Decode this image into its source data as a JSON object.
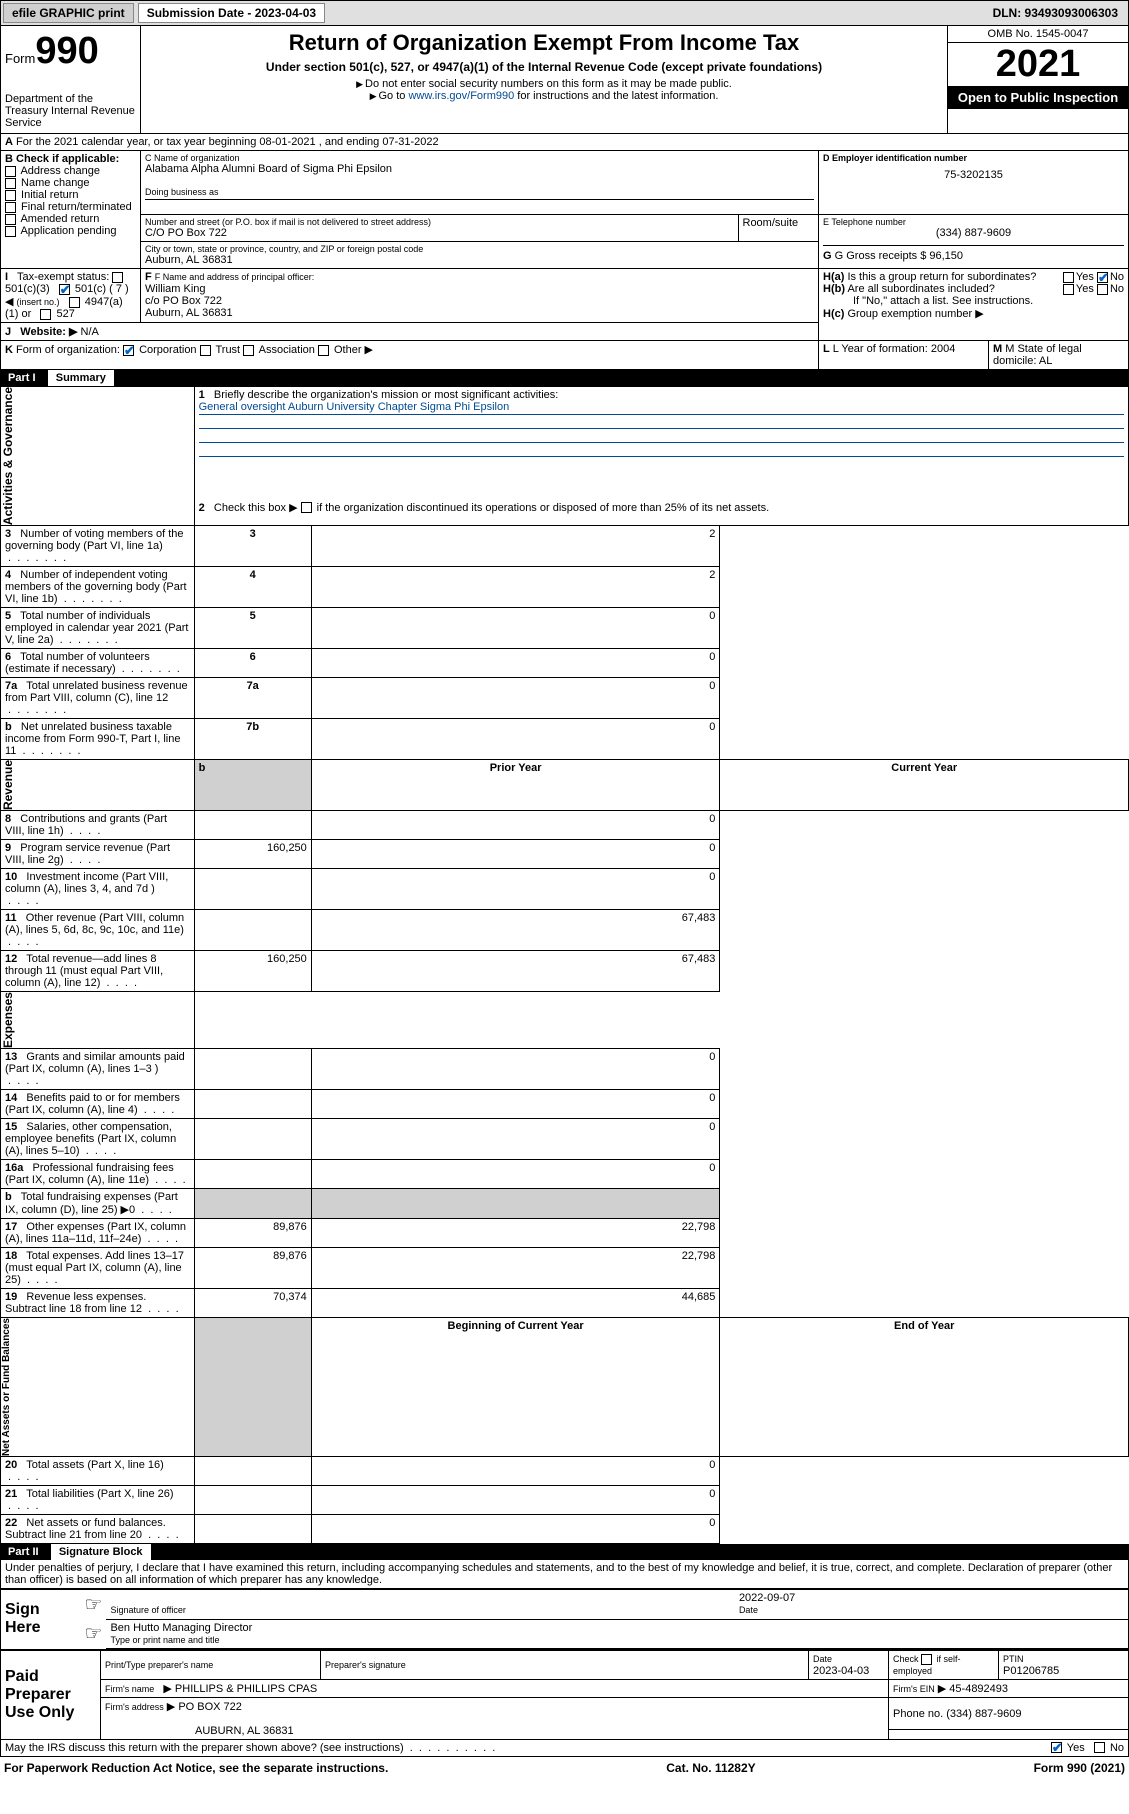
{
  "topBar": {
    "efile": "efile GRAPHIC print",
    "subDate": "Submission Date - 2023-04-03",
    "dln": "DLN: 93493093006303"
  },
  "header": {
    "formLabel": "Form",
    "formNum": "990",
    "dept": "Department of the Treasury Internal Revenue Service",
    "title": "Return of Organization Exempt From Income Tax",
    "subtitle": "Under section 501(c), 527, or 4947(a)(1) of the Internal Revenue Code (except private foundations)",
    "note1": "Do not enter social security numbers on this form as it may be made public.",
    "note2": "Go to ",
    "note2link": "www.irs.gov/Form990",
    "note2after": " for instructions and the latest information.",
    "omb": "OMB No. 1545-0047",
    "year": "2021",
    "inspection": "Open to Public Inspection"
  },
  "sectionA": {
    "taxYear": "For the 2021 calendar year, or tax year beginning 08-01-2021  , and ending 07-31-2022",
    "checkLabel": "B Check if applicable:",
    "checks": [
      "Address change",
      "Name change",
      "Initial return",
      "Final return/terminated",
      "Amended return",
      "Application pending"
    ],
    "nameLabel": "C Name of organization",
    "orgName": "Alabama Alpha Alumni Board of Sigma Phi Epsilon",
    "dbaLabel": "Doing business as",
    "addrLabel": "Number and street (or P.O. box if mail is not delivered to street address)",
    "roomLabel": "Room/suite",
    "addr": "C/O PO Box 722",
    "cityLabel": "City or town, state or province, country, and ZIP or foreign postal code",
    "city": "Auburn, AL  36831",
    "einLabel": "D Employer identification number",
    "ein": "75-3202135",
    "phoneLabel": "E Telephone number",
    "phone": "(334) 887-9609",
    "grossLabel": "G Gross receipts $ 96,150",
    "officerLabel": "F Name and address of principal officer:",
    "officer": "William King\nc/o PO Box 722\nAuburn, AL  36831",
    "haLabel": "H(a)  Is this a group return for subordinates?",
    "hbLabel": "H(b)  Are all subordinates included?",
    "hcNote": "If \"No,\" attach a list. See instructions.",
    "hcLabel": "H(c)  Group exemption number",
    "taxExemptLabel": "Tax-exempt status:",
    "te1": "501(c)(3)",
    "te2": "501(c) ( 7 )",
    "te2note": "(insert no.)",
    "te3": "4947(a)(1) or",
    "te4": "527",
    "websiteLabel": "Website:",
    "website": "N/A",
    "kLabel": "K Form of organization:",
    "kOpts": [
      "Corporation",
      "Trust",
      "Association",
      "Other"
    ],
    "lLabel": "L Year of formation: 2004",
    "mLabel": "M State of legal domicile: AL"
  },
  "part1": {
    "header": "Part I",
    "title": "Summary",
    "labels": {
      "activities": "Activities & Governance",
      "revenue": "Revenue",
      "expenses": "Expenses",
      "netassets": "Net Assets or Fund Balances"
    },
    "line1": "Briefly describe the organization's mission or most significant activities:",
    "mission": "General oversight Auburn University Chapter Sigma Phi Epsilon",
    "line2": "Check this box   if the organization discontinued its operations or disposed of more than 25% of its net assets.",
    "rows": [
      {
        "n": "3",
        "t": "Number of voting members of the governing body (Part VI, line 1a)",
        "l": "3",
        "v": "2"
      },
      {
        "n": "4",
        "t": "Number of independent voting members of the governing body (Part VI, line 1b)",
        "l": "4",
        "v": "2"
      },
      {
        "n": "5",
        "t": "Total number of individuals employed in calendar year 2021 (Part V, line 2a)",
        "l": "5",
        "v": "0"
      },
      {
        "n": "6",
        "t": "Total number of volunteers (estimate if necessary)",
        "l": "6",
        "v": "0"
      },
      {
        "n": "7a",
        "t": "Total unrelated business revenue from Part VIII, column (C), line 12",
        "l": "7a",
        "v": "0"
      },
      {
        "n": "b",
        "t": "Net unrelated business taxable income from Form 990-T, Part I, line 11",
        "l": "7b",
        "v": "0"
      }
    ],
    "colHeaders": {
      "prior": "Prior Year",
      "current": "Current Year"
    },
    "twoCol": [
      {
        "n": "8",
        "t": "Contributions and grants (Part VIII, line 1h)",
        "p": "",
        "c": "0"
      },
      {
        "n": "9",
        "t": "Program service revenue (Part VIII, line 2g)",
        "p": "160,250",
        "c": "0"
      },
      {
        "n": "10",
        "t": "Investment income (Part VIII, column (A), lines 3, 4, and 7d )",
        "p": "",
        "c": "0"
      },
      {
        "n": "11",
        "t": "Other revenue (Part VIII, column (A), lines 5, 6d, 8c, 9c, 10c, and 11e)",
        "p": "",
        "c": "67,483"
      },
      {
        "n": "12",
        "t": "Total revenue—add lines 8 through 11 (must equal Part VIII, column (A), line 12)",
        "p": "160,250",
        "c": "67,483"
      },
      {
        "n": "13",
        "t": "Grants and similar amounts paid (Part IX, column (A), lines 1–3 )",
        "p": "",
        "c": "0"
      },
      {
        "n": "14",
        "t": "Benefits paid to or for members (Part IX, column (A), line 4)",
        "p": "",
        "c": "0"
      },
      {
        "n": "15",
        "t": "Salaries, other compensation, employee benefits (Part IX, column (A), lines 5–10)",
        "p": "",
        "c": "0"
      },
      {
        "n": "16a",
        "t": "Professional fundraising fees (Part IX, column (A), line 11e)",
        "p": "",
        "c": "0"
      },
      {
        "n": "b",
        "t": "Total fundraising expenses (Part IX, column (D), line 25) ▶0",
        "p": "SHADE",
        "c": "SHADE"
      },
      {
        "n": "17",
        "t": "Other expenses (Part IX, column (A), lines 11a–11d, 11f–24e)",
        "p": "89,876",
        "c": "22,798"
      },
      {
        "n": "18",
        "t": "Total expenses. Add lines 13–17 (must equal Part IX, column (A), line 25)",
        "p": "89,876",
        "c": "22,798"
      },
      {
        "n": "19",
        "t": "Revenue less expenses. Subtract line 18 from line 12",
        "p": "70,374",
        "c": "44,685"
      }
    ],
    "balHeaders": {
      "begin": "Beginning of Current Year",
      "end": "End of Year"
    },
    "balRows": [
      {
        "n": "20",
        "t": "Total assets (Part X, line 16)",
        "p": "",
        "c": "0"
      },
      {
        "n": "21",
        "t": "Total liabilities (Part X, line 26)",
        "p": "",
        "c": "0"
      },
      {
        "n": "22",
        "t": "Net assets or fund balances. Subtract line 21 from line 20",
        "p": "",
        "c": "0"
      }
    ]
  },
  "part2": {
    "header": "Part II",
    "title": "Signature Block",
    "declaration": "Under penalties of perjury, I declare that I have examined this return, including accompanying schedules and statements, and to the best of my knowledge and belief, it is true, correct, and complete. Declaration of preparer (other than officer) is based on all information of which preparer has any knowledge.",
    "signHere": "Sign Here",
    "sigOfficer": "Signature of officer",
    "sigDate": "Date",
    "sigDateVal": "2022-09-07",
    "officerName": "Ben Hutto Managing Director",
    "officerNameLabel": "Type or print name and title",
    "paidPrep": "Paid Preparer Use Only",
    "prepName": "Print/Type preparer's name",
    "prepSig": "Preparer's signature",
    "prepDate": "Date",
    "prepDateVal": "2023-04-03",
    "checkSelf": "Check          if self-employed",
    "ptin": "PTIN",
    "ptinVal": "P01206785",
    "firmName": "Firm's name",
    "firmNameVal": "PHILLIPS & PHILLIPS CPAS",
    "firmEin": "Firm's EIN",
    "firmEinVal": "45-4892493",
    "firmAddr": "Firm's address",
    "firmAddrVal": "PO BOX 722",
    "firmCity": "AUBURN, AL  36831",
    "firmPhone": "Phone no. (334) 887-9609",
    "mayIRS": "May the IRS discuss this return with the preparer shown above? (see instructions)",
    "yes": "Yes",
    "no": "No"
  },
  "footer": {
    "paperwork": "For Paperwork Reduction Act Notice, see the separate instructions.",
    "cat": "Cat. No. 11282Y",
    "form": "Form 990 (2021)"
  }
}
